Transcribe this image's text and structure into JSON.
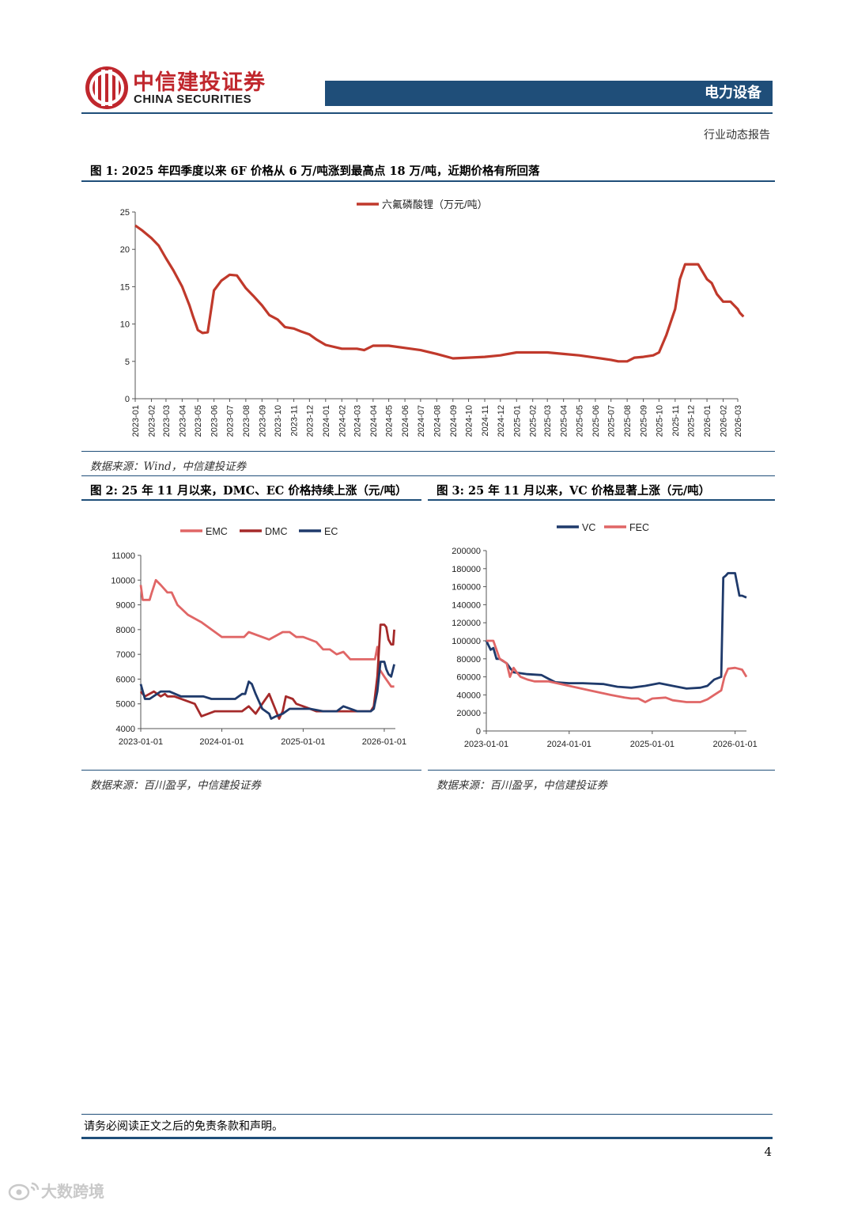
{
  "header": {
    "company_cn": "中信建投证券",
    "company_en": "CHINA SECURITIES",
    "sector": "电力设备",
    "report_type": "行业动态报告"
  },
  "figures": [
    {
      "title": "图 1: 2025 年四季度以来 6F 价格从 6 万/吨涨到最高点 18 万/吨，近期价格有所回落",
      "source": "数据来源：Wind，中信建投证券"
    },
    {
      "title": "图 2: 25 年 11 月以来，DMC、EC 价格持续上涨（元/吨）",
      "source": "数据来源：百川盈孚，中信建投证券"
    },
    {
      "title": "图 3: 25 年 11 月以来，VC 价格显著上涨（元/吨）",
      "source": "数据来源：百川盈孚，中信建投证券"
    }
  ],
  "chart_data": [
    {
      "type": "line",
      "title": "",
      "ylim": [
        0,
        25
      ],
      "yticks": [
        0,
        5,
        10,
        15,
        20,
        25
      ],
      "xticks": [
        "2023-01",
        "2023-02",
        "2023-03",
        "2023-04",
        "2023-05",
        "2023-06",
        "2023-07",
        "2023-08",
        "2023-09",
        "2023-10",
        "2023-11",
        "2023-12",
        "2024-01",
        "2024-02",
        "2024-03",
        "2024-04",
        "2024-05",
        "2024-06",
        "2024-07",
        "2024-08",
        "2024-09",
        "2024-10",
        "2024-11",
        "2024-12",
        "2025-01",
        "2025-02",
        "2025-03",
        "2025-04",
        "2025-05",
        "2025-06",
        "2025-07",
        "2025-08",
        "2025-09",
        "2025-10",
        "2025-11",
        "2025-12",
        "2026-01",
        "2026-02",
        "2026-03"
      ],
      "legend_position": "top-center",
      "grid": false,
      "series": [
        {
          "name": "六氟磷酸锂（万元/吨）",
          "color": "#c0392b",
          "x": [
            "2023-01-01",
            "2023-01-15",
            "2023-02-01",
            "2023-02-15",
            "2023-03-01",
            "2023-03-15",
            "2023-04-01",
            "2023-04-15",
            "2023-04-22",
            "2023-05-01",
            "2023-05-10",
            "2023-05-20",
            "2023-06-01",
            "2023-06-15",
            "2023-07-01",
            "2023-07-15",
            "2023-08-01",
            "2023-08-15",
            "2023-09-01",
            "2023-09-15",
            "2023-10-01",
            "2023-10-15",
            "2023-11-01",
            "2023-11-15",
            "2023-12-01",
            "2023-12-15",
            "2024-01-01",
            "2024-02-01",
            "2024-03-01",
            "2024-03-15",
            "2024-04-01",
            "2024-05-01",
            "2024-06-01",
            "2024-07-01",
            "2024-08-01",
            "2024-09-01",
            "2024-10-01",
            "2024-11-01",
            "2024-12-01",
            "2025-01-01",
            "2025-02-01",
            "2025-03-01",
            "2025-04-01",
            "2025-05-01",
            "2025-06-01",
            "2025-07-01",
            "2025-07-15",
            "2025-08-01",
            "2025-08-15",
            "2025-09-01",
            "2025-09-20",
            "2025-10-01",
            "2025-10-15",
            "2025-11-01",
            "2025-11-10",
            "2025-11-20",
            "2025-12-01",
            "2025-12-15",
            "2026-01-01",
            "2026-01-10",
            "2026-01-20",
            "2026-02-01",
            "2026-02-15",
            "2026-03-01",
            "2026-03-05",
            "2026-03-12"
          ],
          "y": [
            23.2,
            22.5,
            21.5,
            20.5,
            18.8,
            17.2,
            15.0,
            12.5,
            11.0,
            9.2,
            8.8,
            8.9,
            14.5,
            15.8,
            16.6,
            16.5,
            14.8,
            13.8,
            12.5,
            11.2,
            10.6,
            9.6,
            9.4,
            9.0,
            8.6,
            7.9,
            7.2,
            6.7,
            6.7,
            6.5,
            7.1,
            7.1,
            6.8,
            6.5,
            6.0,
            5.4,
            5.5,
            5.6,
            5.8,
            6.2,
            6.2,
            6.2,
            6.0,
            5.8,
            5.5,
            5.2,
            5.0,
            5.0,
            5.5,
            5.6,
            5.8,
            6.2,
            8.5,
            12.0,
            16.0,
            18.0,
            18.0,
            18.0,
            16.0,
            15.5,
            14.0,
            13.0,
            13.0,
            12.0,
            11.5,
            11.0
          ]
        }
      ]
    },
    {
      "type": "line",
      "title": "",
      "ylim": [
        4000,
        11000
      ],
      "yticks": [
        4000,
        5000,
        6000,
        7000,
        8000,
        9000,
        10000,
        11000
      ],
      "xticks": [
        "2023-01-01",
        "2024-01-01",
        "2025-01-01",
        "2026-01-01"
      ],
      "legend_position": "top-center",
      "grid": false,
      "series": [
        {
          "name": "EMC",
          "color": "#e06666",
          "x": [
            "2023-01-01",
            "2023-01-10",
            "2023-02-10",
            "2023-02-20",
            "2023-03-10",
            "2023-04-01",
            "2023-05-01",
            "2023-05-20",
            "2023-06-15",
            "2023-08-01",
            "2023-10-01",
            "2024-01-01",
            "2024-03-10",
            "2024-04-10",
            "2024-05-01",
            "2024-08-01",
            "2024-10-01",
            "2024-11-01",
            "2024-12-01",
            "2025-01-01",
            "2025-03-01",
            "2025-04-01",
            "2025-05-01",
            "2025-06-01",
            "2025-07-01",
            "2025-08-01",
            "2025-09-01",
            "2025-10-01",
            "2025-11-01",
            "2025-11-20",
            "2025-12-01",
            "2025-12-10",
            "2026-01-01",
            "2026-02-01",
            "2026-02-15"
          ],
          "y": [
            9800,
            9200,
            9200,
            9500,
            10000,
            9800,
            9500,
            9500,
            9000,
            8600,
            8300,
            7700,
            7700,
            7700,
            7900,
            7600,
            7900,
            7900,
            7700,
            7700,
            7500,
            7200,
            7200,
            7000,
            7100,
            6800,
            6800,
            6800,
            6800,
            6800,
            7300,
            6400,
            6100,
            5700,
            5700
          ]
        },
        {
          "name": "DMC",
          "color": "#a52a2a",
          "x": [
            "2023-01-01",
            "2023-01-20",
            "2023-03-01",
            "2023-04-01",
            "2023-04-20",
            "2023-05-01",
            "2023-06-01",
            "2023-09-01",
            "2023-10-01",
            "2023-12-01",
            "2024-01-01",
            "2024-04-01",
            "2024-05-01",
            "2024-06-01",
            "2024-07-01",
            "2024-08-01",
            "2024-09-15",
            "2024-10-01",
            "2024-10-15",
            "2024-11-15",
            "2024-12-01",
            "2025-01-01",
            "2025-02-01",
            "2025-03-01",
            "2025-04-01",
            "2025-06-01",
            "2025-09-01",
            "2025-10-01",
            "2025-11-01",
            "2025-11-15",
            "2025-12-01",
            "2025-12-15",
            "2026-01-01",
            "2026-01-10",
            "2026-01-20",
            "2026-02-01",
            "2026-02-10",
            "2026-02-15"
          ],
          "y": [
            5500,
            5300,
            5500,
            5300,
            5400,
            5300,
            5300,
            5000,
            4500,
            4700,
            4700,
            4700,
            4900,
            4600,
            5000,
            5400,
            4400,
            4700,
            5300,
            5200,
            5000,
            4900,
            4800,
            4700,
            4700,
            4700,
            4700,
            4700,
            4700,
            4900,
            6100,
            8200,
            8200,
            8100,
            7600,
            7400,
            7400,
            8000
          ]
        },
        {
          "name": "EC",
          "color": "#1f3a6b",
          "x": [
            "2023-01-01",
            "2023-01-20",
            "2023-02-10",
            "2023-04-01",
            "2023-05-10",
            "2023-07-01",
            "2023-09-01",
            "2023-10-10",
            "2023-11-15",
            "2024-01-01",
            "2024-03-01",
            "2024-04-01",
            "2024-04-15",
            "2024-05-01",
            "2024-05-15",
            "2024-06-01",
            "2024-07-01",
            "2024-08-01",
            "2024-08-10",
            "2024-09-01",
            "2024-10-01",
            "2024-11-01",
            "2024-12-01",
            "2025-02-01",
            "2025-04-01",
            "2025-06-01",
            "2025-07-01",
            "2025-09-01",
            "2025-10-01",
            "2025-11-01",
            "2025-11-15",
            "2025-12-01",
            "2025-12-15",
            "2026-01-01",
            "2026-01-10",
            "2026-01-20",
            "2026-02-01",
            "2026-02-15"
          ],
          "y": [
            5800,
            5200,
            5200,
            5500,
            5500,
            5300,
            5300,
            5300,
            5200,
            5200,
            5200,
            5400,
            5400,
            5900,
            5800,
            5400,
            4800,
            4600,
            4400,
            4500,
            4600,
            4800,
            4800,
            4800,
            4700,
            4700,
            4900,
            4700,
            4700,
            4700,
            4800,
            5500,
            6700,
            6700,
            6400,
            6200,
            6100,
            6600
          ]
        }
      ]
    },
    {
      "type": "line",
      "title": "",
      "ylim": [
        0,
        200000
      ],
      "yticks": [
        0,
        20000,
        40000,
        60000,
        80000,
        100000,
        120000,
        140000,
        160000,
        180000,
        200000
      ],
      "xticks": [
        "2023-01-01",
        "2024-01-01",
        "2025-01-01",
        "2026-01-01"
      ],
      "legend_position": "top-center",
      "grid": false,
      "series": [
        {
          "name": "VC",
          "color": "#1f3a6b",
          "x": [
            "2023-01-01",
            "2023-01-20",
            "2023-02-01",
            "2023-02-15",
            "2023-03-01",
            "2023-04-01",
            "2023-04-15",
            "2023-05-01",
            "2023-06-01",
            "2023-07-01",
            "2023-09-01",
            "2023-10-01",
            "2023-11-01",
            "2024-01-01",
            "2024-03-01",
            "2024-06-01",
            "2024-08-01",
            "2024-10-01",
            "2024-12-01",
            "2025-02-01",
            "2025-04-01",
            "2025-06-01",
            "2025-08-01",
            "2025-09-01",
            "2025-10-01",
            "2025-11-01",
            "2025-11-10",
            "2025-11-20",
            "2025-12-01",
            "2025-12-15",
            "2026-01-01",
            "2026-01-20",
            "2026-02-01",
            "2026-02-20"
          ],
          "y": [
            100000,
            90000,
            92000,
            80000,
            80000,
            75000,
            70000,
            65000,
            64000,
            63000,
            62000,
            58000,
            54000,
            53000,
            53000,
            52000,
            49000,
            48000,
            50000,
            53000,
            50000,
            47000,
            48000,
            50000,
            57000,
            60000,
            170000,
            172000,
            175000,
            175000,
            175000,
            150000,
            150000,
            148000
          ]
        },
        {
          "name": "FEC",
          "color": "#e06666",
          "x": [
            "2023-01-01",
            "2023-02-01",
            "2023-03-01",
            "2023-03-15",
            "2023-04-01",
            "2023-04-15",
            "2023-05-01",
            "2023-05-15",
            "2023-06-01",
            "2023-07-01",
            "2023-08-01",
            "2023-10-01",
            "2024-01-01",
            "2024-04-01",
            "2024-07-01",
            "2024-09-01",
            "2024-10-01",
            "2024-11-01",
            "2024-12-01",
            "2025-01-01",
            "2025-03-01",
            "2025-04-01",
            "2025-06-01",
            "2025-08-01",
            "2025-09-01",
            "2025-10-01",
            "2025-11-01",
            "2025-11-15",
            "2025-12-01",
            "2026-01-01",
            "2026-02-01",
            "2026-02-20"
          ],
          "y": [
            100000,
            100000,
            80000,
            78000,
            75000,
            60000,
            70000,
            65000,
            60000,
            57000,
            55000,
            55000,
            50000,
            45000,
            40000,
            37000,
            36000,
            36000,
            32000,
            36000,
            37000,
            34000,
            32000,
            32000,
            35000,
            40000,
            45000,
            60000,
            69000,
            70000,
            68000,
            60000
          ]
        }
      ]
    }
  ],
  "footer": {
    "disclaimer": "请务必阅读正文之后的免责条款和声明。",
    "page_number": "4"
  },
  "watermark": "大数跨境"
}
